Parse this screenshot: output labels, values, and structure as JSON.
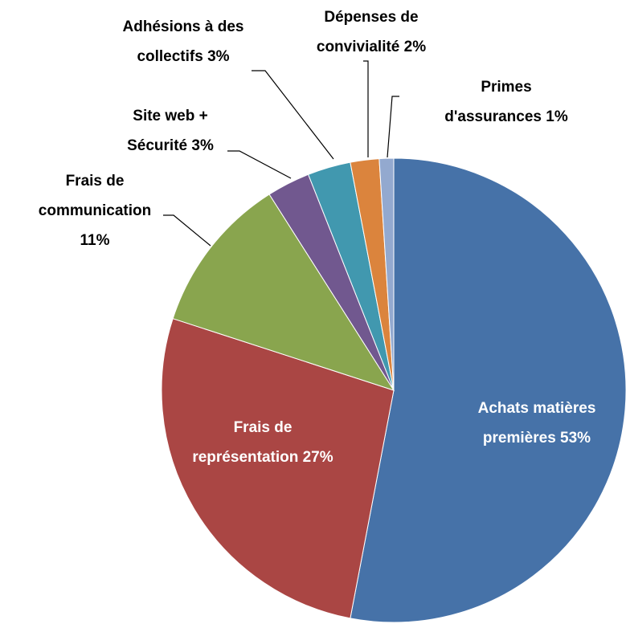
{
  "chart_data": {
    "type": "pie",
    "categories": [
      "Achats matières premières",
      "Frais de représentation",
      "Frais de communication",
      "Site web + Sécurité",
      "Adhésions à des collectifs",
      "Dépenses de convivialité",
      "Primes d'assurances"
    ],
    "values": [
      53,
      27,
      11,
      3,
      3,
      2,
      1
    ],
    "value_labels": [
      "53%",
      "27%",
      "11%",
      "3%",
      "3%",
      "2%",
      "1%"
    ],
    "colors": [
      "#4672a8",
      "#aa4644",
      "#89a54e",
      "#71588f",
      "#4198af",
      "#db843d",
      "#93a9cf"
    ]
  }
}
